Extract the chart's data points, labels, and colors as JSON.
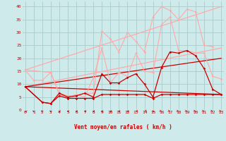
{
  "background_color": "#ceeaea",
  "grid_color": "#aacccc",
  "x_label": "Vent moyen/en rafales ( km/h )",
  "y_ticks": [
    0,
    5,
    10,
    15,
    20,
    25,
    30,
    35,
    40
  ],
  "x_ticks": [
    0,
    1,
    2,
    3,
    4,
    5,
    6,
    7,
    8,
    9,
    10,
    11,
    12,
    13,
    14,
    15,
    16,
    17,
    18,
    19,
    20,
    21,
    22,
    23
  ],
  "xlim": [
    -0.3,
    23.3
  ],
  "ylim": [
    0,
    42
  ],
  "lines": [
    {
      "x": [
        0,
        1,
        2,
        3,
        4,
        5,
        6,
        7,
        8,
        9,
        10,
        11,
        12,
        13,
        14,
        15,
        16,
        17,
        18,
        19,
        20,
        21,
        22
      ],
      "y": [
        15.5,
        11.5,
        11.5,
        14.5,
        6.5,
        5.5,
        5.5,
        6.5,
        6.5,
        30.5,
        27.5,
        22.5,
        30.0,
        26.5,
        22.5,
        36.0,
        40.0,
        38.5,
        35.0,
        39.0,
        38.0,
        25.0,
        24.5
      ],
      "color": "#ffaaaa",
      "lw": 0.8,
      "marker": "D",
      "ms": 1.8,
      "alpha": 1.0
    },
    {
      "x": [
        0,
        3,
        4,
        5,
        6,
        7,
        8,
        9,
        10,
        11,
        12,
        13,
        14,
        15,
        16,
        17,
        18,
        19,
        20,
        21,
        22,
        23
      ],
      "y": [
        15.5,
        14.5,
        6.0,
        5.0,
        6.0,
        5.0,
        12.5,
        24.0,
        10.5,
        14.5,
        13.0,
        22.0,
        15.0,
        14.5,
        33.0,
        36.0,
        23.0,
        23.0,
        22.0,
        22.0,
        13.0,
        12.0
      ],
      "color": "#ffaaaa",
      "lw": 0.8,
      "marker": "D",
      "ms": 1.8,
      "alpha": 1.0
    },
    {
      "x": [
        0,
        2,
        3,
        4,
        5,
        6,
        7,
        8,
        9,
        10,
        11,
        12,
        13,
        14,
        15,
        16,
        17,
        18,
        19,
        20,
        21,
        22,
        23
      ],
      "y": [
        9.0,
        3.0,
        2.5,
        6.5,
        5.0,
        5.5,
        6.5,
        5.0,
        14.0,
        10.5,
        10.5,
        12.5,
        14.0,
        10.0,
        5.0,
        16.5,
        22.5,
        22.0,
        23.0,
        21.0,
        16.0,
        8.0,
        6.0
      ],
      "color": "#cc0000",
      "lw": 0.9,
      "marker": "D",
      "ms": 1.8,
      "alpha": 1.0
    },
    {
      "x": [
        0,
        2,
        3,
        4,
        5,
        6,
        7,
        8,
        9,
        10,
        11,
        12,
        13,
        14,
        15,
        16,
        17,
        18,
        19,
        20,
        21,
        22,
        23
      ],
      "y": [
        9.0,
        3.0,
        2.5,
        5.5,
        4.5,
        4.5,
        4.5,
        4.5,
        6.0,
        6.0,
        6.0,
        6.0,
        6.0,
        6.0,
        4.5,
        6.0,
        6.0,
        6.0,
        6.0,
        6.0,
        6.0,
        6.0,
        6.0
      ],
      "color": "#cc0000",
      "lw": 0.9,
      "marker": "D",
      "ms": 1.8,
      "alpha": 1.0
    },
    {
      "x": [
        0,
        23
      ],
      "y": [
        9.0,
        24.0
      ],
      "color": "#ffaaaa",
      "lw": 0.9,
      "marker": null,
      "ms": 0,
      "alpha": 1.0
    },
    {
      "x": [
        0,
        23
      ],
      "y": [
        15.5,
        40.0
      ],
      "color": "#ffaaaa",
      "lw": 0.9,
      "marker": null,
      "ms": 0,
      "alpha": 1.0
    },
    {
      "x": [
        0,
        23
      ],
      "y": [
        9.0,
        6.0
      ],
      "color": "#cc0000",
      "lw": 0.9,
      "marker": null,
      "ms": 0,
      "alpha": 1.0
    },
    {
      "x": [
        0,
        23
      ],
      "y": [
        9.0,
        20.0
      ],
      "color": "#cc0000",
      "lw": 0.9,
      "marker": null,
      "ms": 0,
      "alpha": 1.0
    }
  ],
  "wind_arrows": {
    "x": [
      0,
      1,
      2,
      3,
      4,
      5,
      6,
      7,
      8,
      9,
      10,
      11,
      12,
      13,
      14,
      15,
      16,
      17,
      18,
      19,
      20,
      21,
      22,
      23
    ],
    "angles_deg": [
      230,
      200,
      210,
      200,
      270,
      270,
      270,
      270,
      270,
      270,
      270,
      270,
      270,
      310,
      320,
      30,
      45,
      45,
      45,
      45,
      45,
      45,
      45,
      45
    ]
  }
}
